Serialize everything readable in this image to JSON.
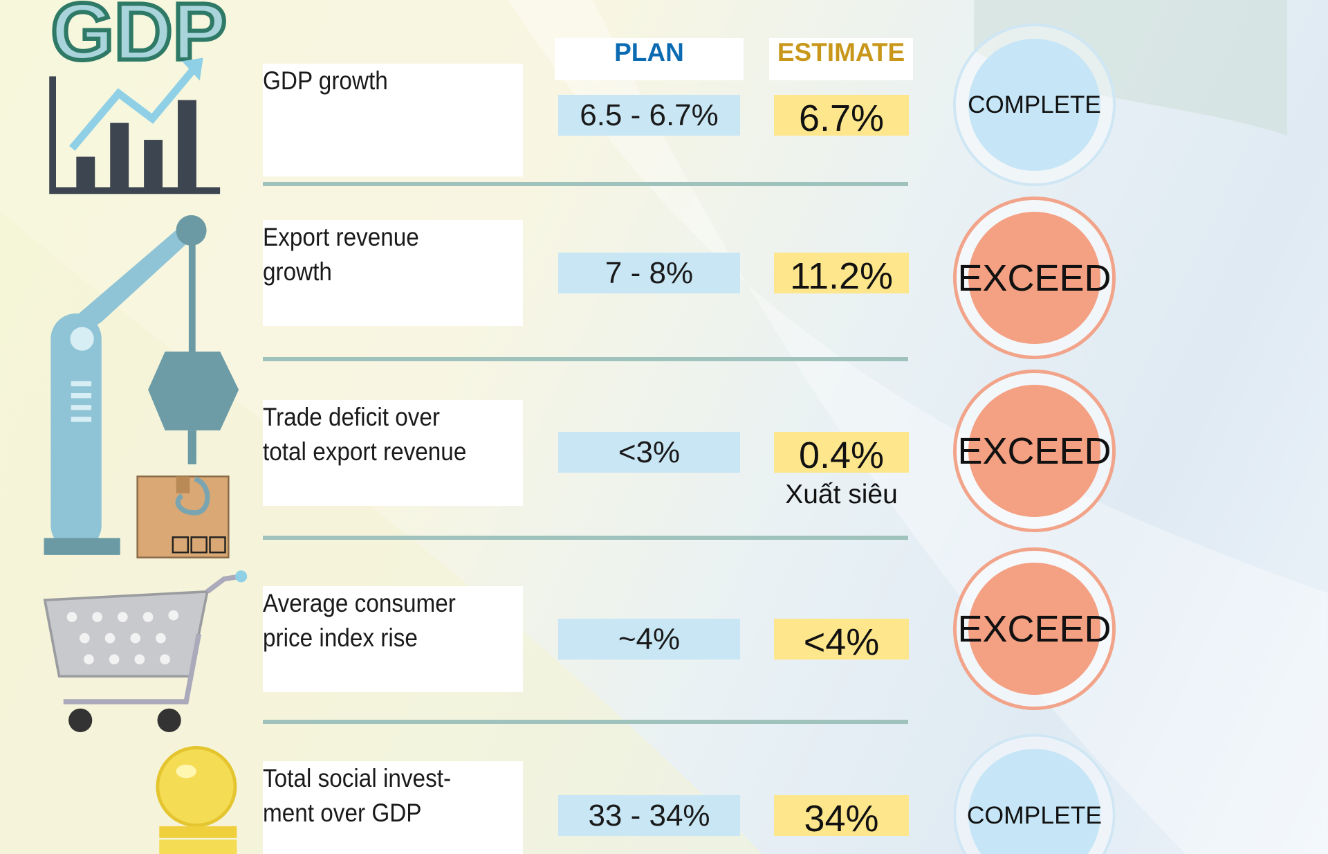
{
  "logo_text": "GDP",
  "headers": {
    "plan": "PLAN",
    "estimate": "ESTIMATE",
    "plan_color": "#0a6bb3",
    "estimate_color": "#c8971a"
  },
  "rows": [
    {
      "label_lines": [
        "GDP growth"
      ],
      "plan": "6.5 - 6.7%",
      "estimate": "6.7%",
      "status": "COMPLETE",
      "icon": "gdp-chart-icon"
    },
    {
      "label_lines": [
        "Export revenue",
        "growth"
      ],
      "plan": "7 - 8%",
      "estimate": "11.2%",
      "status": "EXCEED",
      "icon": "crane-icon"
    },
    {
      "label_lines": [
        "Trade deficit over",
        "total export revenue"
      ],
      "plan": "<3%",
      "estimate": "0.4%",
      "estimate_note": "Xuất siêu",
      "status": "EXCEED",
      "icon": "box-icon"
    },
    {
      "label_lines": [
        "Average consumer",
        "price index rise"
      ],
      "plan": "~4%",
      "estimate": "<4%",
      "status": "EXCEED",
      "icon": "shopping-cart-icon"
    },
    {
      "label_lines": [
        "Total social invest-",
        "ment over GDP"
      ],
      "plan": "33 - 34%",
      "estimate": "34%",
      "status": "COMPLETE",
      "icon": "coins-icon"
    }
  ],
  "colors": {
    "plan_cell": "#c9e6f5",
    "estimate_cell": "#fde68c",
    "exceed": "#f4a083",
    "complete": "#c6e5f6",
    "separator": "#9fc2bc"
  }
}
